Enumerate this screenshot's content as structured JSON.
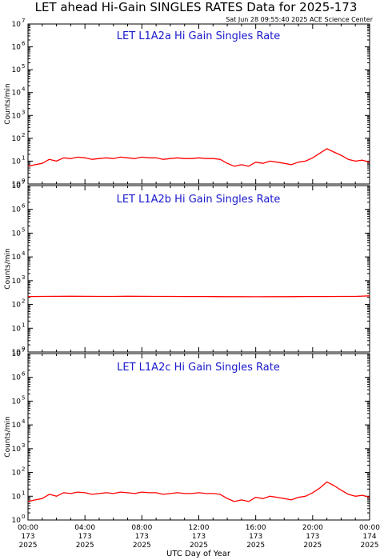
{
  "title": "LET ahead Hi-Gain SINGLES RATES Data for 2025-173",
  "timestamp": "Sat Jun 28 09:55:40 2025 ACE Science Center",
  "colors": {
    "trace": "#ff0000",
    "panel_title": "#1a1acc",
    "frame": "#000000"
  },
  "chart_data": [
    {
      "type": "line",
      "title": "LET L1A2a Hi Gain Singles Rate",
      "ylabel": "Counts/min",
      "yscale": "log",
      "ylim": [
        1,
        10000000
      ],
      "xlim_hours": [
        0,
        24
      ],
      "series": [
        {
          "x_hours": [
            0,
            0.5,
            1,
            1.5,
            2,
            2.5,
            3,
            3.5,
            4,
            4.5,
            5,
            5.5,
            6,
            6.5,
            7,
            7.5,
            8,
            8.5,
            9,
            9.5,
            10,
            10.5,
            11,
            11.5,
            12,
            12.5,
            13,
            13.5,
            14,
            14.5,
            15,
            15.5,
            16,
            16.5,
            17,
            17.5,
            18,
            18.5,
            19,
            19.5,
            20,
            20.5,
            21,
            21.5,
            22,
            22.5,
            23,
            23.5,
            24
          ],
          "values": [
            6,
            7,
            8,
            12,
            10,
            14,
            13,
            15,
            14,
            12,
            13,
            14,
            13,
            15,
            14,
            13,
            15,
            14,
            14,
            12,
            13,
            14,
            13,
            13,
            14,
            13,
            13,
            12,
            8,
            6,
            7,
            6,
            9,
            8,
            10,
            9,
            8,
            7,
            9,
            10,
            14,
            22,
            35,
            25,
            18,
            12,
            10,
            11,
            9
          ]
        }
      ]
    },
    {
      "type": "line",
      "title": "LET L1A2b Hi Gain Singles Rate",
      "ylabel": "Counts/min",
      "yscale": "log",
      "ylim": [
        1,
        10000000
      ],
      "xlim_hours": [
        0,
        24
      ],
      "series": [
        {
          "x_hours": [
            0,
            1,
            2,
            3,
            4,
            5,
            6,
            7,
            8,
            9,
            10,
            11,
            12,
            13,
            14,
            15,
            16,
            17,
            18,
            19,
            20,
            21,
            22,
            23,
            24
          ],
          "values": [
            215,
            218,
            220,
            222,
            220,
            218,
            219,
            221,
            220,
            219,
            218,
            217,
            216,
            215,
            214,
            213,
            212,
            213,
            214,
            215,
            216,
            217,
            218,
            219,
            230
          ]
        }
      ]
    },
    {
      "type": "line",
      "title": "LET L1A2c Hi Gain Singles Rate",
      "ylabel": "Counts/min",
      "yscale": "log",
      "ylim": [
        1,
        10000000
      ],
      "xlim_hours": [
        0,
        24
      ],
      "series": [
        {
          "x_hours": [
            0,
            0.5,
            1,
            1.5,
            2,
            2.5,
            3,
            3.5,
            4,
            4.5,
            5,
            5.5,
            6,
            6.5,
            7,
            7.5,
            8,
            8.5,
            9,
            9.5,
            10,
            10.5,
            11,
            11.5,
            12,
            12.5,
            13,
            13.5,
            14,
            14.5,
            15,
            15.5,
            16,
            16.5,
            17,
            17.5,
            18,
            18.5,
            19,
            19.5,
            20,
            20.5,
            21,
            21.5,
            22,
            22.5,
            23,
            23.5,
            24
          ],
          "values": [
            6,
            7,
            8,
            12,
            10,
            14,
            13,
            15,
            14,
            12,
            13,
            14,
            13,
            15,
            14,
            13,
            15,
            14,
            14,
            12,
            13,
            14,
            13,
            13,
            14,
            13,
            13,
            12,
            8,
            6,
            7,
            6,
            9,
            8,
            10,
            9,
            8,
            7,
            9,
            10,
            14,
            22,
            40,
            28,
            18,
            12,
            10,
            11,
            9
          ]
        }
      ]
    }
  ],
  "yticks": {
    "bases": [
      "10",
      "10",
      "10",
      "10",
      "10",
      "10",
      "10",
      "10"
    ],
    "exponents": [
      "0",
      "1",
      "2",
      "3",
      "4",
      "5",
      "6",
      "7"
    ]
  },
  "xticks": {
    "times": [
      "00:00",
      "04:00",
      "08:00",
      "12:00",
      "16:00",
      "20:00",
      "00:00"
    ],
    "days": [
      "173",
      "173",
      "173",
      "173",
      "173",
      "173",
      "174"
    ],
    "years": [
      "2025",
      "2025",
      "2025",
      "2025",
      "2025",
      "2025",
      "2025"
    ]
  },
  "xlabel": "UTC Day of Year"
}
